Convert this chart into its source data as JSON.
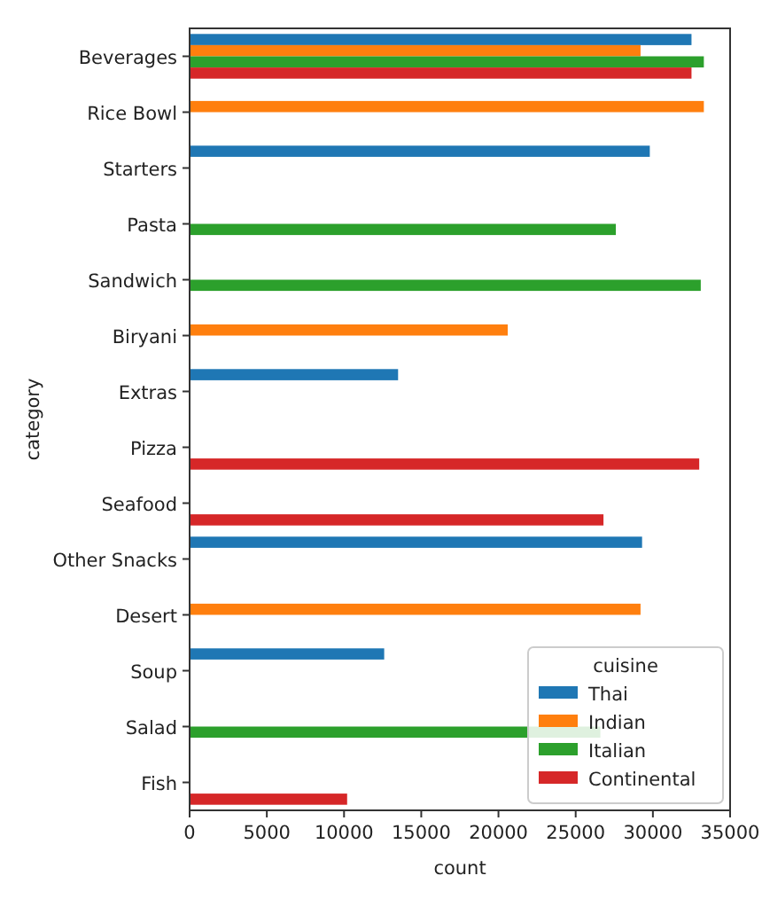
{
  "chart_data": {
    "type": "bar",
    "orientation": "horizontal",
    "xlabel": "count",
    "ylabel": "category",
    "legend_title": "cuisine",
    "legend": "bottom right",
    "grid": false,
    "categories": [
      "Beverages",
      "Rice Bowl",
      "Starters",
      "Pasta",
      "Sandwich",
      "Biryani",
      "Extras",
      "Pizza",
      "Seafood",
      "Other Snacks",
      "Desert",
      "Soup",
      "Salad",
      "Fish"
    ],
    "xlim": [
      0,
      35000
    ],
    "xticks": [
      0,
      5000,
      10000,
      15000,
      20000,
      25000,
      30000,
      35000
    ],
    "series": [
      {
        "name": "Thai",
        "color": "#1f77b4",
        "values": [
          32500,
          null,
          29800,
          null,
          null,
          null,
          13500,
          null,
          null,
          29300,
          null,
          12600,
          null,
          null
        ]
      },
      {
        "name": "Indian",
        "color": "#ff7f0e",
        "values": [
          29200,
          33300,
          null,
          null,
          null,
          20600,
          null,
          null,
          null,
          null,
          29200,
          null,
          null,
          null
        ]
      },
      {
        "name": "Italian",
        "color": "#2ca02c",
        "values": [
          33300,
          null,
          null,
          27600,
          33100,
          null,
          null,
          null,
          null,
          null,
          null,
          null,
          26600,
          null
        ]
      },
      {
        "name": "Continental",
        "color": "#d62728",
        "values": [
          32500,
          null,
          null,
          null,
          null,
          null,
          null,
          33000,
          26800,
          null,
          null,
          null,
          null,
          10200
        ]
      }
    ]
  }
}
